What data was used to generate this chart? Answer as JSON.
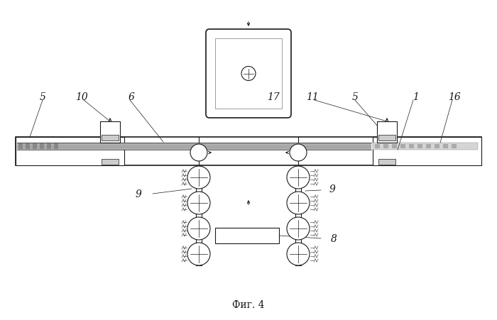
{
  "bg_color": "#ffffff",
  "line_color": "#1a1a1a",
  "gray_light": "#cccccc",
  "gray_med": "#999999",
  "gray_dark": "#666666",
  "title": "Фиг. 4",
  "labels": [
    "5",
    "10",
    "6",
    "17",
    "11",
    "5",
    "1",
    "16",
    "9",
    "9",
    "8"
  ],
  "fig_width": 7.0,
  "fig_height": 4.52,
  "dpi": 100
}
